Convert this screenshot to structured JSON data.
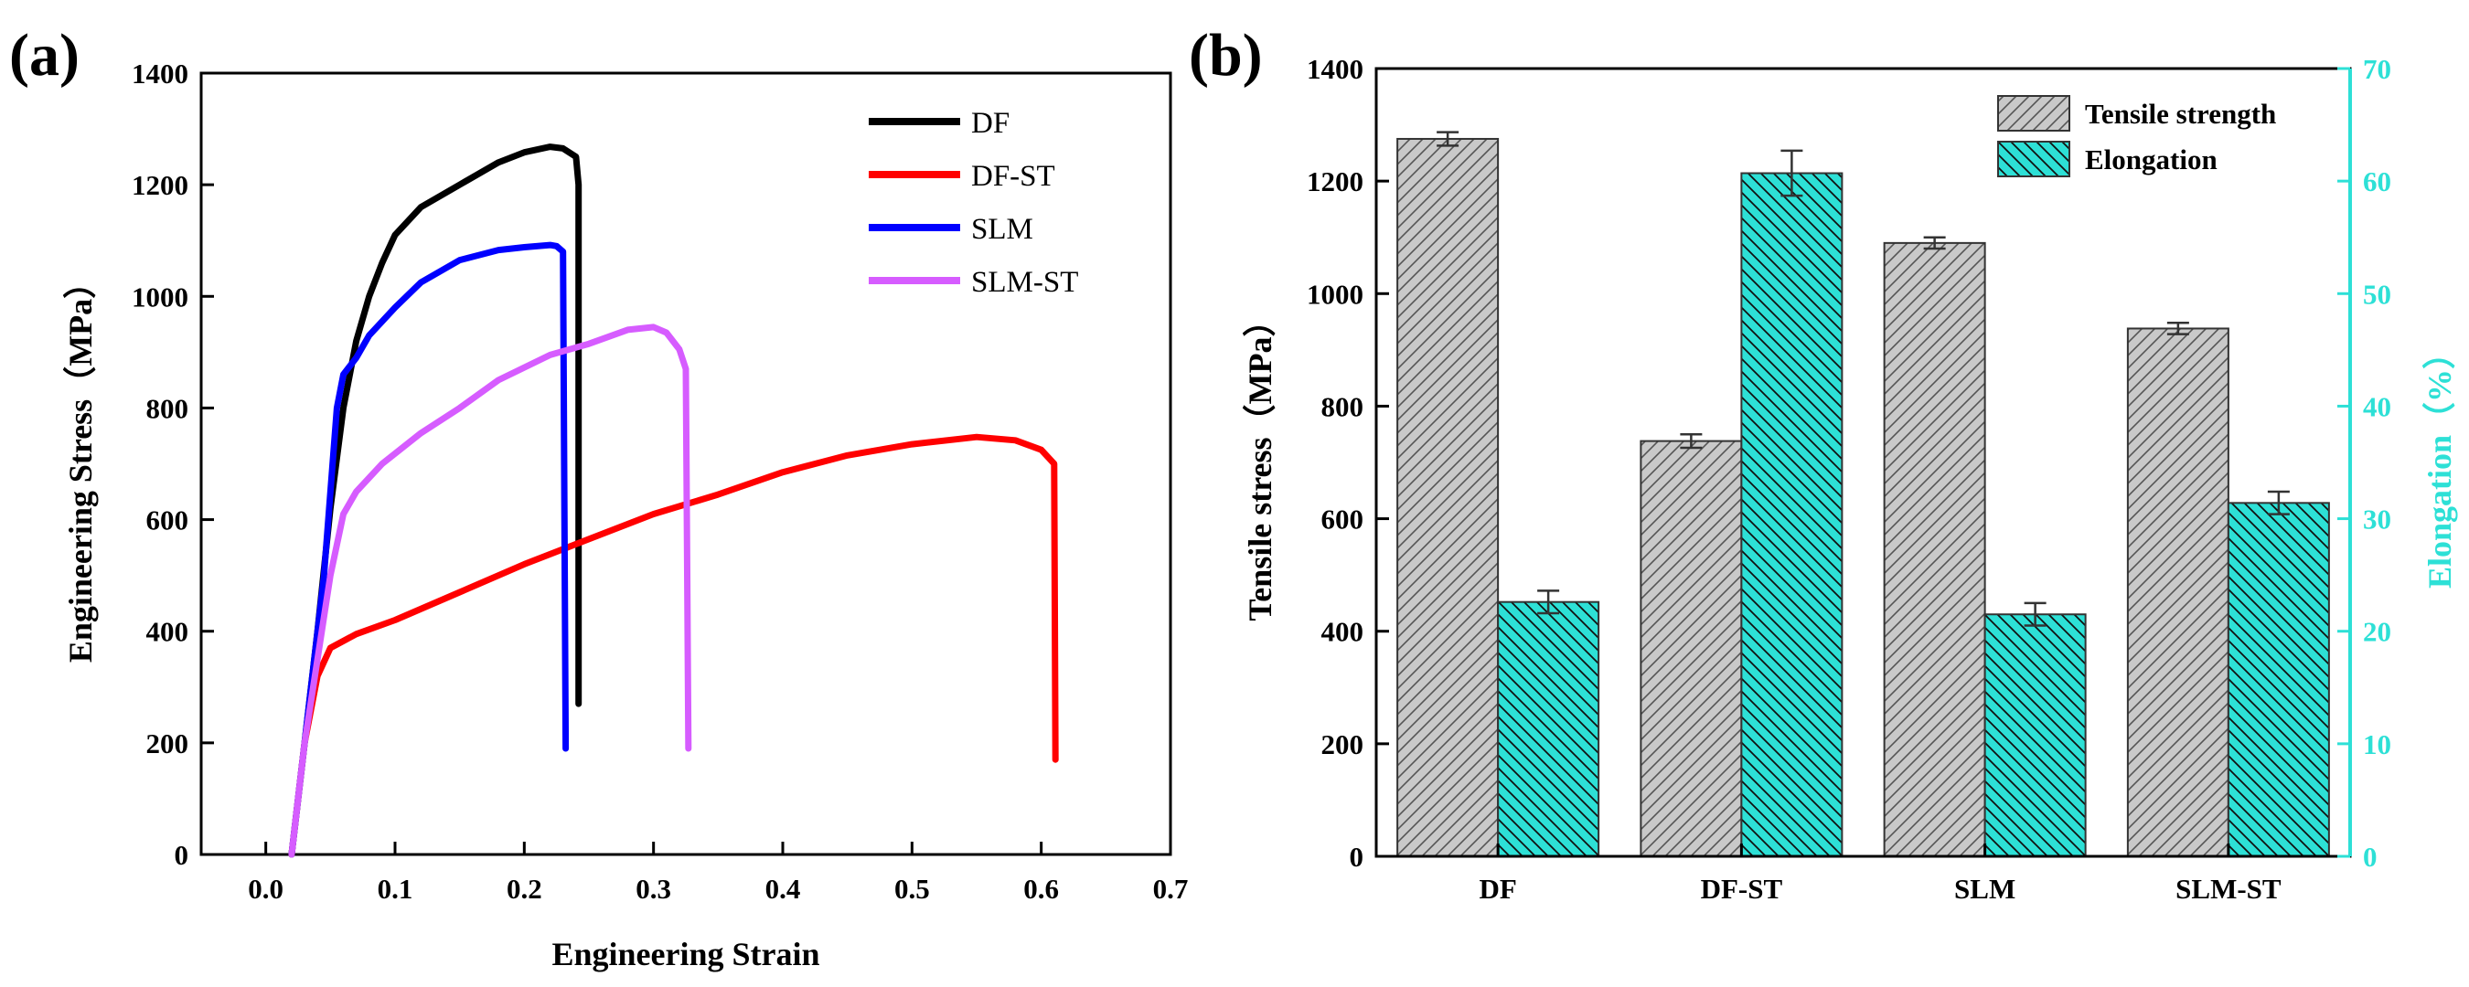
{
  "chart_data": [
    {
      "type": "line",
      "panel_label": "(a)",
      "xlabel": "Engineering Strain",
      "ylabel": "Engineering Stress（MPa）",
      "xlim": [
        -0.05,
        0.7
      ],
      "ylim": [
        0,
        1400
      ],
      "xticks": [
        "0.0",
        "0.1",
        "0.2",
        "0.3",
        "0.4",
        "0.5",
        "0.6",
        "0.7"
      ],
      "yticks": [
        "0",
        "200",
        "400",
        "600",
        "800",
        "1000",
        "1200",
        "1400"
      ],
      "legend_position": "top-right",
      "series": [
        {
          "name": "DF",
          "color": "#000000",
          "points": [
            [
              0.02,
              0
            ],
            [
              0.03,
              200
            ],
            [
              0.04,
              400
            ],
            [
              0.05,
              620
            ],
            [
              0.06,
              800
            ],
            [
              0.07,
              920
            ],
            [
              0.08,
              1000
            ],
            [
              0.09,
              1060
            ],
            [
              0.1,
              1110
            ],
            [
              0.12,
              1160
            ],
            [
              0.15,
              1200
            ],
            [
              0.18,
              1240
            ],
            [
              0.2,
              1258
            ],
            [
              0.22,
              1268
            ],
            [
              0.23,
              1265
            ],
            [
              0.24,
              1250
            ],
            [
              0.242,
              1200
            ],
            [
              0.242,
              270
            ]
          ]
        },
        {
          "name": "DF-ST",
          "color": "#ff0000",
          "points": [
            [
              0.02,
              0
            ],
            [
              0.03,
              200
            ],
            [
              0.04,
              320
            ],
            [
              0.05,
              370
            ],
            [
              0.07,
              395
            ],
            [
              0.1,
              420
            ],
            [
              0.15,
              470
            ],
            [
              0.2,
              520
            ],
            [
              0.25,
              565
            ],
            [
              0.3,
              610
            ],
            [
              0.35,
              645
            ],
            [
              0.4,
              685
            ],
            [
              0.45,
              715
            ],
            [
              0.5,
              735
            ],
            [
              0.55,
              748
            ],
            [
              0.58,
              742
            ],
            [
              0.6,
              725
            ],
            [
              0.61,
              700
            ],
            [
              0.611,
              170
            ]
          ]
        },
        {
          "name": "SLM",
          "color": "#0000ff",
          "points": [
            [
              0.02,
              0
            ],
            [
              0.03,
              200
            ],
            [
              0.045,
              500
            ],
            [
              0.055,
              800
            ],
            [
              0.06,
              860
            ],
            [
              0.07,
              890
            ],
            [
              0.08,
              930
            ],
            [
              0.1,
              980
            ],
            [
              0.12,
              1025
            ],
            [
              0.15,
              1065
            ],
            [
              0.18,
              1083
            ],
            [
              0.2,
              1088
            ],
            [
              0.22,
              1092
            ],
            [
              0.225,
              1090
            ],
            [
              0.23,
              1080
            ],
            [
              0.232,
              190
            ]
          ]
        },
        {
          "name": "SLM-ST",
          "color": "#d65cff",
          "points": [
            [
              0.02,
              0
            ],
            [
              0.03,
              200
            ],
            [
              0.05,
              500
            ],
            [
              0.06,
              610
            ],
            [
              0.07,
              650
            ],
            [
              0.09,
              700
            ],
            [
              0.12,
              755
            ],
            [
              0.15,
              800
            ],
            [
              0.18,
              850
            ],
            [
              0.22,
              895
            ],
            [
              0.25,
              915
            ],
            [
              0.28,
              940
            ],
            [
              0.3,
              945
            ],
            [
              0.31,
              935
            ],
            [
              0.32,
              905
            ],
            [
              0.325,
              870
            ],
            [
              0.327,
              190
            ]
          ]
        }
      ]
    },
    {
      "type": "bar",
      "panel_label": "(b)",
      "categories": [
        "DF",
        "DF-ST",
        "SLM",
        "SLM-ST"
      ],
      "ylabel": "Tensile stress（MPa）",
      "y2label": "Elongation（%）",
      "ylim": [
        0,
        1400
      ],
      "y2lim": [
        0,
        70
      ],
      "yticks": [
        "0",
        "200",
        "400",
        "600",
        "800",
        "1000",
        "1200",
        "1400"
      ],
      "y2ticks": [
        "0",
        "10",
        "20",
        "30",
        "40",
        "50",
        "60",
        "70"
      ],
      "legend_position": "top-right",
      "series": [
        {
          "name": "Tensile strength",
          "axis": "left",
          "color": "#c8c8c8",
          "values": [
            1275,
            738,
            1090,
            938
          ],
          "errors": [
            12,
            12,
            10,
            10
          ]
        },
        {
          "name": "Elongation",
          "axis": "right",
          "color": "#2de0d6",
          "values": [
            22.6,
            60.7,
            21.5,
            31.4
          ],
          "errors": [
            1.0,
            2.0,
            1.0,
            1.0
          ]
        }
      ]
    }
  ]
}
